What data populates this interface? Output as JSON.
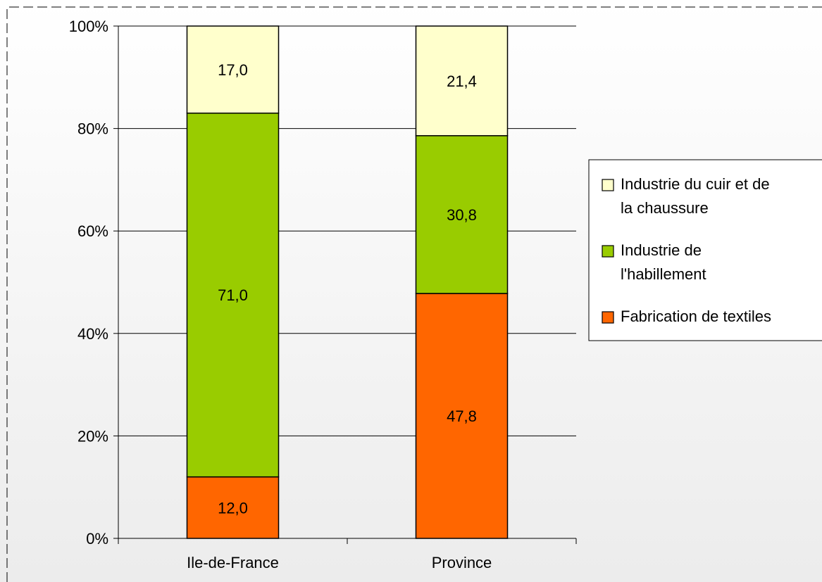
{
  "chart_data": {
    "type": "bar",
    "stacked": true,
    "normalized": true,
    "categories": [
      "Ile-de-France",
      "Province"
    ],
    "series": [
      {
        "name": "Fabrication de textiles",
        "values": [
          12.0,
          47.8
        ],
        "labels": [
          "12,0",
          "47,8"
        ],
        "color": "#ff6600"
      },
      {
        "name": "Industrie de l'habillement",
        "values": [
          71.0,
          30.8
        ],
        "labels": [
          "71,0",
          "30,8"
        ],
        "color": "#99cc00"
      },
      {
        "name": "Industrie du cuir et de la chaussure",
        "values": [
          17.0,
          21.4
        ],
        "labels": [
          "17,0",
          "21,4"
        ],
        "color": "#ffffcc"
      }
    ],
    "yticks": [
      "0%",
      "20%",
      "40%",
      "60%",
      "80%",
      "100%"
    ],
    "ylim": [
      0,
      100
    ],
    "grid": true,
    "legend_position": "right",
    "legend_order": [
      "Industrie du cuir et de la chaussure",
      "Industrie de l'habillement",
      "Fabrication de textiles"
    ],
    "legend_lines": {
      "Industrie du cuir et de la chaussure": [
        "Industrie du cuir et de",
        "la chaussure"
      ],
      "Industrie de l'habillement": [
        "Industrie de",
        "l'habillement"
      ],
      "Fabrication de textiles": [
        "Fabrication de textiles"
      ]
    },
    "title": "",
    "xlabel": "",
    "ylabel": ""
  }
}
